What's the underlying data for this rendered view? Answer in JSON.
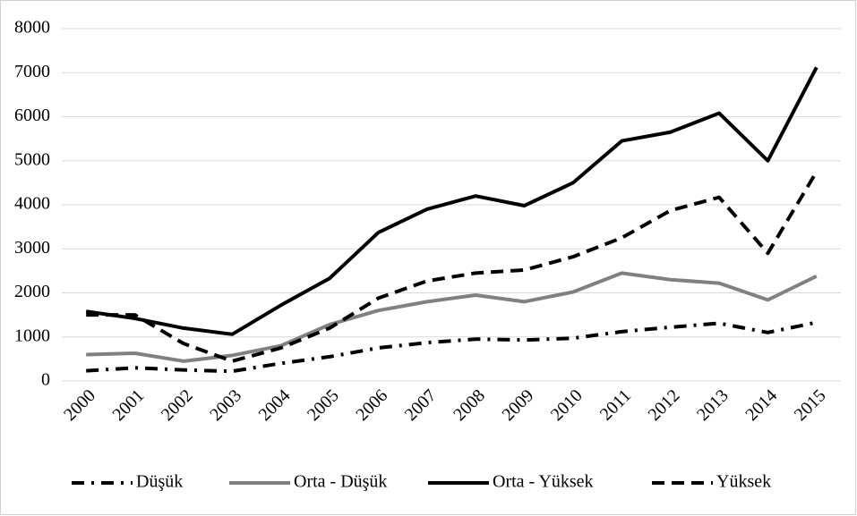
{
  "chart_data": {
    "type": "line",
    "categories": [
      "2000",
      "2001",
      "2002",
      "2003",
      "2004",
      "2005",
      "2006",
      "2007",
      "2008",
      "2009",
      "2010",
      "2011",
      "2012",
      "2013",
      "2014",
      "2015"
    ],
    "series": [
      {
        "name": "Düşük",
        "color": "#000000",
        "linestyle": "dashdot",
        "values": [
          230,
          300,
          250,
          220,
          400,
          550,
          750,
          870,
          950,
          930,
          970,
          1120,
          1220,
          1310,
          1100,
          1330
        ]
      },
      {
        "name": "Orta - Düşük",
        "color": "#808080",
        "linestyle": "solid",
        "values": [
          600,
          630,
          450,
          580,
          800,
          1280,
          1600,
          1800,
          1950,
          1800,
          2020,
          2450,
          2300,
          2220,
          1840,
          2380
        ]
      },
      {
        "name": "Orta - Yüksek",
        "color": "#000000",
        "linestyle": "solid",
        "values": [
          1580,
          1420,
          1200,
          1060,
          1720,
          2330,
          3370,
          3900,
          4200,
          3980,
          4500,
          5450,
          5650,
          6080,
          5000,
          7120
        ]
      },
      {
        "name": "Yüksek",
        "color": "#000000",
        "linestyle": "dashed",
        "values": [
          1500,
          1500,
          850,
          450,
          750,
          1200,
          1880,
          2270,
          2450,
          2520,
          2820,
          3250,
          3870,
          4170,
          2900,
          4750
        ]
      }
    ],
    "ylim": [
      0,
      8000
    ],
    "yticks": [
      0,
      1000,
      2000,
      3000,
      4000,
      5000,
      6000,
      7000,
      8000
    ],
    "grid": true,
    "legend": "bottom"
  }
}
